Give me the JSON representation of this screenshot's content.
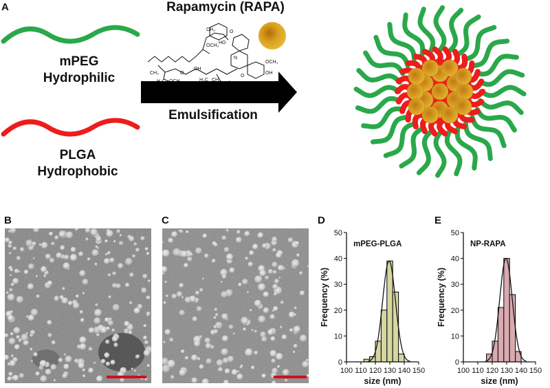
{
  "panel_a": {
    "letter": "A",
    "peg_line1": "mPEG",
    "peg_line2": "Hydrophilic",
    "plga_line1": "PLGA",
    "plga_line2": "Hydrophobic",
    "drug_title": "Rapamycin (RAPA)",
    "process": "Emulsification",
    "colors": {
      "peg": "#2aa84a",
      "plga": "#ee1c1c",
      "drug": "#d9a21f",
      "arrow": "#000000"
    }
  },
  "panel_b": {
    "letter": "B",
    "scale_bar_color": "#d0101a"
  },
  "panel_c": {
    "letter": "C",
    "scale_bar_color": "#d0101a"
  },
  "chart_data": [
    {
      "panel": "D",
      "type": "bar",
      "title": "mPEG-PLGA",
      "xlabel": "size (nm)",
      "ylabel": "Frequency (%)",
      "xlim": [
        100,
        150
      ],
      "ylim": [
        0,
        50
      ],
      "xticks": [
        100,
        110,
        120,
        130,
        140,
        150
      ],
      "yticks": [
        0,
        10,
        20,
        30,
        40,
        50
      ],
      "bin_width": 4,
      "bins": [
        114,
        118,
        122,
        126,
        130,
        134,
        138
      ],
      "values": [
        1,
        2,
        8,
        20,
        39,
        27,
        3
      ],
      "bar_color": "#d6d6a0",
      "fit_curve": true
    },
    {
      "panel": "E",
      "type": "bar",
      "title": "NP-RAPA",
      "xlabel": "size (nm)",
      "ylabel": "Frequency (%)",
      "xlim": [
        100,
        150
      ],
      "ylim": [
        0,
        50
      ],
      "xticks": [
        100,
        110,
        120,
        130,
        140,
        150
      ],
      "yticks": [
        0,
        10,
        20,
        30,
        40,
        50
      ],
      "bin_width": 4,
      "bins": [
        118,
        122,
        126,
        130,
        134,
        138
      ],
      "values": [
        3,
        8,
        21,
        40,
        26,
        4
      ],
      "bar_color": "#d9aab0",
      "fit_curve": true
    }
  ]
}
